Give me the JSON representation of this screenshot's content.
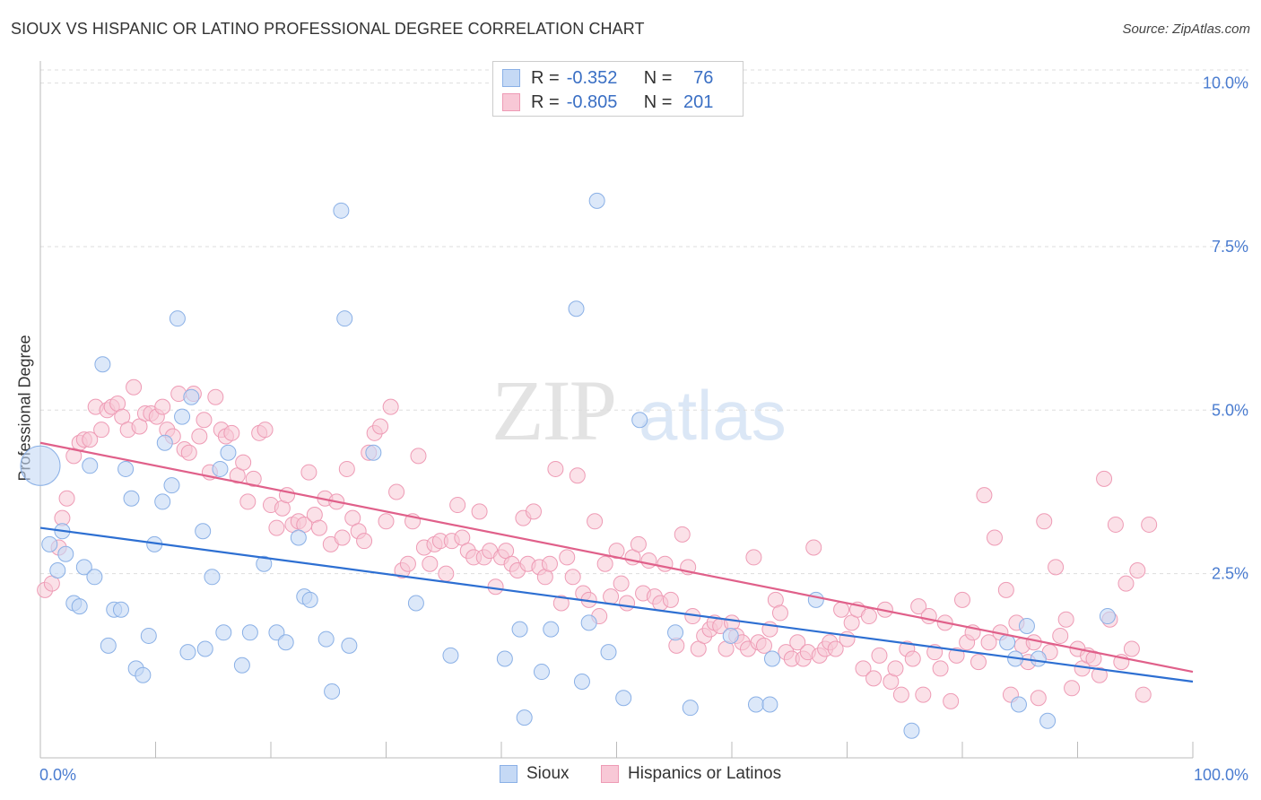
{
  "title": "SIOUX VS HISPANIC OR LATINO PROFESSIONAL DEGREE CORRELATION CHART",
  "source": "Source: ZipAtlas.com",
  "legend": {
    "r_label": "R =",
    "n_label": "N =",
    "sioux": {
      "r": "-0.352",
      "n": "76"
    },
    "hispanic": {
      "r": "-0.805",
      "n": "201"
    }
  },
  "bottom_legend": {
    "sioux": "Sioux",
    "hispanic": "Hispanics or Latinos"
  },
  "colors": {
    "sioux_fill": "#c5d9f5",
    "sioux_stroke": "#8ab0e6",
    "sioux_line": "#2d6fd2",
    "hispanic_fill": "#f8c8d6",
    "hispanic_stroke": "#ee9bb5",
    "hispanic_line": "#e0608a",
    "tick_label": "#4a7cd0",
    "grid": "#dddddd"
  },
  "chart_data": {
    "type": "scatter",
    "title": "SIOUX VS HISPANIC OR LATINO PROFESSIONAL DEGREE CORRELATION CHART",
    "xlabel": "",
    "ylabel": "Professional Degree",
    "xlim": [
      0,
      100
    ],
    "ylim": [
      0,
      10.2
    ],
    "x_tick_labels": [
      "0.0%",
      "100.0%"
    ],
    "y_ticks": [
      2.5,
      5.0,
      7.5,
      10.0
    ],
    "y_tick_labels": [
      "2.5%",
      "5.0%",
      "7.5%",
      "10.0%"
    ],
    "grid": true,
    "legend_placement": "top-center",
    "watermark": "ZIPatlas",
    "series": [
      {
        "name": "Sioux",
        "trend": [
          [
            0,
            3.2
          ],
          [
            100,
            0.85
          ]
        ],
        "points": [
          [
            0.2,
            4.15
          ],
          [
            0.8,
            2.95
          ],
          [
            1.5,
            2.55
          ],
          [
            1.9,
            3.15
          ],
          [
            2.2,
            2.8
          ],
          [
            2.9,
            2.05
          ],
          [
            3.4,
            2.0
          ],
          [
            3.8,
            2.6
          ],
          [
            4.3,
            4.15
          ],
          [
            4.7,
            2.45
          ],
          [
            5.4,
            5.7
          ],
          [
            5.9,
            1.4
          ],
          [
            6.4,
            1.95
          ],
          [
            7.0,
            1.95
          ],
          [
            7.4,
            4.1
          ],
          [
            7.9,
            3.65
          ],
          [
            8.3,
            1.05
          ],
          [
            8.9,
            0.95
          ],
          [
            9.4,
            1.55
          ],
          [
            9.9,
            2.95
          ],
          [
            10.6,
            3.6
          ],
          [
            10.8,
            4.5
          ],
          [
            11.4,
            3.85
          ],
          [
            11.9,
            6.4
          ],
          [
            12.3,
            4.9
          ],
          [
            12.8,
            1.3
          ],
          [
            13.1,
            5.2
          ],
          [
            14.1,
            3.15
          ],
          [
            14.3,
            1.35
          ],
          [
            14.9,
            2.45
          ],
          [
            15.6,
            4.1
          ],
          [
            15.9,
            1.6
          ],
          [
            16.3,
            4.35
          ],
          [
            17.5,
            1.1
          ],
          [
            18.2,
            1.6
          ],
          [
            19.4,
            2.65
          ],
          [
            20.5,
            1.6
          ],
          [
            21.3,
            1.45
          ],
          [
            22.4,
            3.05
          ],
          [
            22.9,
            2.15
          ],
          [
            23.4,
            2.1
          ],
          [
            24.8,
            1.5
          ],
          [
            25.3,
            0.7
          ],
          [
            26.1,
            8.05
          ],
          [
            26.4,
            6.4
          ],
          [
            26.8,
            1.4
          ],
          [
            28.9,
            4.35
          ],
          [
            32.6,
            2.05
          ],
          [
            35.6,
            1.25
          ],
          [
            40.3,
            1.2
          ],
          [
            41.6,
            1.65
          ],
          [
            42.0,
            0.3
          ],
          [
            43.5,
            1.0
          ],
          [
            44.3,
            1.65
          ],
          [
            47.0,
            0.85
          ],
          [
            46.5,
            6.55
          ],
          [
            47.6,
            1.75
          ],
          [
            48.3,
            8.2
          ],
          [
            49.3,
            1.3
          ],
          [
            50.6,
            0.6
          ],
          [
            52.0,
            4.85
          ],
          [
            55.1,
            1.6
          ],
          [
            56.4,
            0.45
          ],
          [
            59.9,
            1.55
          ],
          [
            62.1,
            0.5
          ],
          [
            63.3,
            0.5
          ],
          [
            63.5,
            1.2
          ],
          [
            67.3,
            2.1
          ],
          [
            75.6,
            0.1
          ],
          [
            83.9,
            1.45
          ],
          [
            84.6,
            1.2
          ],
          [
            84.9,
            0.5
          ],
          [
            85.6,
            1.7
          ],
          [
            86.6,
            1.2
          ],
          [
            87.4,
            0.25
          ],
          [
            92.6,
            1.85
          ]
        ]
      },
      {
        "name": "Hispanics or Latinos",
        "trend": [
          [
            0,
            4.5
          ],
          [
            100,
            1.0
          ]
        ],
        "points": [
          [
            0.4,
            2.25
          ],
          [
            1.0,
            2.35
          ],
          [
            1.6,
            2.9
          ],
          [
            1.9,
            3.35
          ],
          [
            2.3,
            3.65
          ],
          [
            2.9,
            4.3
          ],
          [
            3.4,
            4.5
          ],
          [
            3.8,
            4.55
          ],
          [
            4.3,
            4.55
          ],
          [
            4.8,
            5.05
          ],
          [
            5.3,
            4.7
          ],
          [
            5.8,
            5.0
          ],
          [
            6.2,
            5.05
          ],
          [
            6.7,
            5.1
          ],
          [
            7.1,
            4.9
          ],
          [
            7.6,
            4.7
          ],
          [
            8.1,
            5.35
          ],
          [
            8.6,
            4.75
          ],
          [
            9.1,
            4.95
          ],
          [
            9.6,
            4.95
          ],
          [
            10.1,
            4.9
          ],
          [
            10.6,
            5.05
          ],
          [
            11.0,
            4.7
          ],
          [
            11.5,
            4.6
          ],
          [
            12.0,
            5.25
          ],
          [
            12.5,
            4.4
          ],
          [
            12.9,
            4.35
          ],
          [
            13.3,
            5.25
          ],
          [
            13.8,
            4.6
          ],
          [
            14.2,
            4.85
          ],
          [
            14.7,
            4.05
          ],
          [
            15.2,
            5.2
          ],
          [
            15.7,
            4.7
          ],
          [
            16.1,
            4.6
          ],
          [
            16.6,
            4.65
          ],
          [
            17.1,
            4.0
          ],
          [
            17.6,
            4.2
          ],
          [
            18.0,
            3.6
          ],
          [
            18.5,
            3.95
          ],
          [
            19.0,
            4.65
          ],
          [
            19.5,
            4.7
          ],
          [
            20.0,
            3.55
          ],
          [
            20.5,
            3.2
          ],
          [
            21.0,
            3.5
          ],
          [
            21.4,
            3.7
          ],
          [
            21.9,
            3.25
          ],
          [
            22.4,
            3.3
          ],
          [
            22.9,
            3.25
          ],
          [
            23.3,
            4.05
          ],
          [
            23.8,
            3.4
          ],
          [
            24.2,
            3.2
          ],
          [
            24.7,
            3.65
          ],
          [
            25.2,
            2.95
          ],
          [
            25.7,
            3.6
          ],
          [
            26.2,
            3.05
          ],
          [
            26.6,
            4.1
          ],
          [
            27.1,
            3.35
          ],
          [
            27.6,
            3.15
          ],
          [
            28.1,
            3.0
          ],
          [
            28.5,
            4.35
          ],
          [
            29.0,
            4.65
          ],
          [
            29.5,
            4.75
          ],
          [
            30.0,
            3.3
          ],
          [
            30.4,
            5.05
          ],
          [
            30.9,
            3.75
          ],
          [
            31.4,
            2.55
          ],
          [
            31.9,
            2.65
          ],
          [
            32.3,
            3.3
          ],
          [
            32.8,
            4.3
          ],
          [
            33.3,
            2.9
          ],
          [
            33.8,
            2.65
          ],
          [
            34.2,
            2.95
          ],
          [
            34.7,
            3.0
          ],
          [
            35.2,
            2.5
          ],
          [
            35.7,
            3.0
          ],
          [
            36.2,
            3.55
          ],
          [
            36.6,
            3.05
          ],
          [
            37.1,
            2.85
          ],
          [
            37.6,
            2.75
          ],
          [
            38.1,
            3.45
          ],
          [
            38.5,
            2.75
          ],
          [
            39.0,
            2.85
          ],
          [
            39.5,
            2.3
          ],
          [
            40.0,
            2.75
          ],
          [
            40.4,
            2.85
          ],
          [
            40.9,
            2.65
          ],
          [
            41.4,
            2.55
          ],
          [
            41.9,
            3.35
          ],
          [
            42.3,
            2.65
          ],
          [
            42.8,
            3.45
          ],
          [
            43.3,
            2.6
          ],
          [
            43.8,
            2.45
          ],
          [
            44.2,
            2.65
          ],
          [
            44.7,
            4.1
          ],
          [
            45.2,
            2.05
          ],
          [
            45.7,
            2.75
          ],
          [
            46.2,
            2.45
          ],
          [
            46.6,
            4.0
          ],
          [
            47.1,
            2.2
          ],
          [
            47.6,
            2.1
          ],
          [
            48.1,
            3.3
          ],
          [
            48.5,
            1.85
          ],
          [
            49.0,
            2.65
          ],
          [
            49.5,
            2.15
          ],
          [
            50.0,
            2.85
          ],
          [
            50.4,
            2.35
          ],
          [
            50.9,
            2.05
          ],
          [
            51.4,
            2.75
          ],
          [
            51.9,
            2.95
          ],
          [
            52.3,
            2.2
          ],
          [
            52.8,
            2.7
          ],
          [
            53.3,
            2.15
          ],
          [
            53.8,
            2.05
          ],
          [
            54.2,
            2.65
          ],
          [
            54.7,
            2.1
          ],
          [
            55.2,
            1.4
          ],
          [
            55.7,
            3.1
          ],
          [
            56.2,
            2.6
          ],
          [
            56.6,
            1.85
          ],
          [
            57.1,
            1.35
          ],
          [
            57.6,
            1.55
          ],
          [
            58.1,
            1.65
          ],
          [
            58.5,
            1.75
          ],
          [
            59.0,
            1.7
          ],
          [
            59.5,
            1.35
          ],
          [
            60.0,
            1.75
          ],
          [
            60.4,
            1.55
          ],
          [
            60.9,
            1.45
          ],
          [
            61.4,
            1.35
          ],
          [
            61.9,
            2.75
          ],
          [
            62.3,
            1.45
          ],
          [
            62.8,
            1.4
          ],
          [
            63.3,
            1.65
          ],
          [
            63.8,
            2.1
          ],
          [
            64.2,
            1.9
          ],
          [
            64.7,
            1.3
          ],
          [
            65.2,
            1.2
          ],
          [
            65.7,
            1.45
          ],
          [
            66.2,
            1.2
          ],
          [
            66.6,
            1.3
          ],
          [
            67.1,
            2.9
          ],
          [
            67.6,
            1.25
          ],
          [
            68.1,
            1.35
          ],
          [
            68.5,
            1.45
          ],
          [
            69.0,
            1.35
          ],
          [
            69.5,
            1.95
          ],
          [
            70.0,
            1.5
          ],
          [
            70.4,
            1.75
          ],
          [
            70.9,
            1.95
          ],
          [
            71.4,
            1.05
          ],
          [
            71.9,
            1.85
          ],
          [
            72.3,
            0.9
          ],
          [
            72.8,
            1.25
          ],
          [
            73.3,
            1.95
          ],
          [
            73.8,
            0.85
          ],
          [
            74.2,
            1.05
          ],
          [
            74.7,
            0.65
          ],
          [
            75.2,
            1.35
          ],
          [
            75.7,
            1.2
          ],
          [
            76.2,
            2.0
          ],
          [
            76.6,
            0.65
          ],
          [
            77.1,
            1.85
          ],
          [
            77.6,
            1.3
          ],
          [
            78.1,
            1.05
          ],
          [
            78.5,
            1.75
          ],
          [
            79.0,
            0.55
          ],
          [
            79.5,
            1.25
          ],
          [
            80.0,
            2.1
          ],
          [
            80.4,
            1.45
          ],
          [
            80.9,
            1.6
          ],
          [
            81.4,
            1.15
          ],
          [
            81.9,
            3.7
          ],
          [
            82.3,
            1.45
          ],
          [
            82.8,
            3.05
          ],
          [
            83.3,
            1.6
          ],
          [
            83.8,
            2.25
          ],
          [
            84.2,
            0.65
          ],
          [
            84.7,
            1.75
          ],
          [
            85.2,
            1.4
          ],
          [
            85.7,
            1.15
          ],
          [
            86.2,
            1.45
          ],
          [
            86.6,
            0.6
          ],
          [
            87.1,
            3.3
          ],
          [
            87.6,
            1.3
          ],
          [
            88.1,
            2.6
          ],
          [
            88.5,
            1.55
          ],
          [
            89.0,
            1.8
          ],
          [
            89.5,
            0.75
          ],
          [
            90.0,
            1.35
          ],
          [
            90.4,
            1.05
          ],
          [
            90.9,
            1.25
          ],
          [
            91.4,
            1.2
          ],
          [
            91.9,
            0.95
          ],
          [
            92.3,
            3.95
          ],
          [
            92.8,
            1.8
          ],
          [
            93.3,
            3.25
          ],
          [
            93.8,
            1.15
          ],
          [
            94.2,
            2.35
          ],
          [
            94.7,
            1.35
          ],
          [
            95.2,
            2.55
          ],
          [
            95.7,
            0.65
          ],
          [
            96.2,
            3.25
          ]
        ]
      }
    ]
  }
}
